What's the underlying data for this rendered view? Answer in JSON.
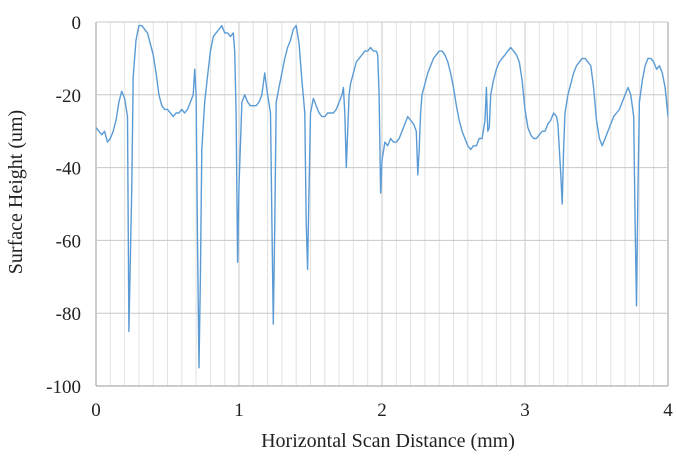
{
  "chart_data": {
    "type": "line",
    "xlabel": "Horizontal Scan Distance (mm)",
    "ylabel": "Surface Height (um)",
    "xlim": [
      0,
      4
    ],
    "ylim": [
      -100,
      0
    ],
    "x_ticks": [
      0,
      1,
      2,
      3,
      4
    ],
    "y_ticks": [
      0,
      -20,
      -40,
      -60,
      -80,
      -100
    ],
    "x_tick_labels": [
      "0",
      "1",
      "2",
      "3",
      "4"
    ],
    "y_tick_labels": [
      "0",
      "-20",
      "-40",
      "-60",
      "-80",
      "-100"
    ],
    "x_minor_step": 0.1,
    "grid": true,
    "legend": "none",
    "series_color": "#5b9bd5",
    "series": [
      {
        "values": [
          [
            0.0,
            -29
          ],
          [
            0.02,
            -30
          ],
          [
            0.04,
            -31
          ],
          [
            0.06,
            -30
          ],
          [
            0.08,
            -33
          ],
          [
            0.1,
            -32
          ],
          [
            0.12,
            -30
          ],
          [
            0.14,
            -27
          ],
          [
            0.16,
            -22
          ],
          [
            0.18,
            -19
          ],
          [
            0.2,
            -21
          ],
          [
            0.22,
            -26
          ],
          [
            0.23,
            -85
          ],
          [
            0.25,
            -45
          ],
          [
            0.26,
            -15
          ],
          [
            0.28,
            -5
          ],
          [
            0.3,
            -1
          ],
          [
            0.32,
            -1
          ],
          [
            0.34,
            -2
          ],
          [
            0.36,
            -3
          ],
          [
            0.38,
            -6
          ],
          [
            0.4,
            -9
          ],
          [
            0.42,
            -14
          ],
          [
            0.44,
            -20
          ],
          [
            0.46,
            -23
          ],
          [
            0.48,
            -24
          ],
          [
            0.5,
            -24
          ],
          [
            0.52,
            -25
          ],
          [
            0.54,
            -26
          ],
          [
            0.56,
            -25
          ],
          [
            0.58,
            -25
          ],
          [
            0.6,
            -24
          ],
          [
            0.62,
            -25
          ],
          [
            0.64,
            -24
          ],
          [
            0.66,
            -22
          ],
          [
            0.68,
            -20
          ],
          [
            0.69,
            -13
          ],
          [
            0.7,
            -20
          ],
          [
            0.71,
            -60
          ],
          [
            0.72,
            -95
          ],
          [
            0.73,
            -70
          ],
          [
            0.74,
            -35
          ],
          [
            0.76,
            -22
          ],
          [
            0.78,
            -15
          ],
          [
            0.8,
            -8
          ],
          [
            0.82,
            -4
          ],
          [
            0.84,
            -3
          ],
          [
            0.86,
            -2
          ],
          [
            0.88,
            -1
          ],
          [
            0.9,
            -3
          ],
          [
            0.92,
            -3
          ],
          [
            0.94,
            -4
          ],
          [
            0.96,
            -3
          ],
          [
            0.97,
            -8
          ],
          [
            0.98,
            -25
          ],
          [
            0.99,
            -66
          ],
          [
            1.0,
            -45
          ],
          [
            1.02,
            -22
          ],
          [
            1.04,
            -20
          ],
          [
            1.06,
            -22
          ],
          [
            1.08,
            -23
          ],
          [
            1.1,
            -23
          ],
          [
            1.12,
            -23
          ],
          [
            1.14,
            -22
          ],
          [
            1.16,
            -20
          ],
          [
            1.18,
            -14
          ],
          [
            1.2,
            -20
          ],
          [
            1.22,
            -25
          ],
          [
            1.23,
            -55
          ],
          [
            1.24,
            -83
          ],
          [
            1.25,
            -55
          ],
          [
            1.26,
            -22
          ],
          [
            1.28,
            -18
          ],
          [
            1.3,
            -14
          ],
          [
            1.32,
            -10
          ],
          [
            1.34,
            -7
          ],
          [
            1.36,
            -5
          ],
          [
            1.38,
            -2
          ],
          [
            1.4,
            -1
          ],
          [
            1.42,
            -6
          ],
          [
            1.44,
            -16
          ],
          [
            1.46,
            -25
          ],
          [
            1.47,
            -55
          ],
          [
            1.48,
            -68
          ],
          [
            1.49,
            -45
          ],
          [
            1.5,
            -25
          ],
          [
            1.52,
            -21
          ],
          [
            1.54,
            -23
          ],
          [
            1.56,
            -25
          ],
          [
            1.58,
            -26
          ],
          [
            1.6,
            -26
          ],
          [
            1.62,
            -25
          ],
          [
            1.64,
            -25
          ],
          [
            1.66,
            -25
          ],
          [
            1.68,
            -24
          ],
          [
            1.7,
            -22
          ],
          [
            1.72,
            -20
          ],
          [
            1.73,
            -18
          ],
          [
            1.74,
            -25
          ],
          [
            1.75,
            -40
          ],
          [
            1.76,
            -30
          ],
          [
            1.77,
            -20
          ],
          [
            1.78,
            -17
          ],
          [
            1.8,
            -14
          ],
          [
            1.82,
            -11
          ],
          [
            1.84,
            -10
          ],
          [
            1.86,
            -9
          ],
          [
            1.88,
            -8
          ],
          [
            1.9,
            -8
          ],
          [
            1.92,
            -7
          ],
          [
            1.94,
            -8
          ],
          [
            1.96,
            -8
          ],
          [
            1.97,
            -9
          ],
          [
            1.98,
            -20
          ],
          [
            1.99,
            -47
          ],
          [
            2.0,
            -38
          ],
          [
            2.02,
            -33
          ],
          [
            2.04,
            -34
          ],
          [
            2.06,
            -32
          ],
          [
            2.08,
            -33
          ],
          [
            2.1,
            -33
          ],
          [
            2.12,
            -32
          ],
          [
            2.14,
            -30
          ],
          [
            2.16,
            -28
          ],
          [
            2.18,
            -26
          ],
          [
            2.2,
            -27
          ],
          [
            2.22,
            -28
          ],
          [
            2.24,
            -30
          ],
          [
            2.25,
            -42
          ],
          [
            2.26,
            -35
          ],
          [
            2.27,
            -25
          ],
          [
            2.28,
            -20
          ],
          [
            2.3,
            -17
          ],
          [
            2.32,
            -14
          ],
          [
            2.34,
            -12
          ],
          [
            2.36,
            -10
          ],
          [
            2.38,
            -9
          ],
          [
            2.4,
            -8
          ],
          [
            2.42,
            -8
          ],
          [
            2.44,
            -9
          ],
          [
            2.46,
            -11
          ],
          [
            2.48,
            -14
          ],
          [
            2.5,
            -18
          ],
          [
            2.52,
            -23
          ],
          [
            2.54,
            -27
          ],
          [
            2.56,
            -30
          ],
          [
            2.58,
            -32
          ],
          [
            2.6,
            -34
          ],
          [
            2.62,
            -35
          ],
          [
            2.64,
            -34
          ],
          [
            2.66,
            -34
          ],
          [
            2.68,
            -32
          ],
          [
            2.7,
            -32
          ],
          [
            2.72,
            -27
          ],
          [
            2.73,
            -18
          ],
          [
            2.74,
            -30
          ],
          [
            2.75,
            -29
          ],
          [
            2.76,
            -20
          ],
          [
            2.78,
            -16
          ],
          [
            2.8,
            -13
          ],
          [
            2.82,
            -11
          ],
          [
            2.84,
            -10
          ],
          [
            2.86,
            -9
          ],
          [
            2.88,
            -8
          ],
          [
            2.9,
            -7
          ],
          [
            2.92,
            -8
          ],
          [
            2.94,
            -9
          ],
          [
            2.96,
            -11
          ],
          [
            2.98,
            -16
          ],
          [
            3.0,
            -24
          ],
          [
            3.02,
            -29
          ],
          [
            3.04,
            -31
          ],
          [
            3.06,
            -32
          ],
          [
            3.08,
            -32
          ],
          [
            3.1,
            -31
          ],
          [
            3.12,
            -30
          ],
          [
            3.14,
            -30
          ],
          [
            3.16,
            -28
          ],
          [
            3.18,
            -27
          ],
          [
            3.2,
            -25
          ],
          [
            3.22,
            -26
          ],
          [
            3.23,
            -28
          ],
          [
            3.25,
            -42
          ],
          [
            3.26,
            -50
          ],
          [
            3.27,
            -35
          ],
          [
            3.28,
            -25
          ],
          [
            3.3,
            -20
          ],
          [
            3.32,
            -17
          ],
          [
            3.34,
            -14
          ],
          [
            3.36,
            -12
          ],
          [
            3.38,
            -11
          ],
          [
            3.4,
            -10
          ],
          [
            3.42,
            -10
          ],
          [
            3.44,
            -11
          ],
          [
            3.46,
            -12
          ],
          [
            3.48,
            -18
          ],
          [
            3.5,
            -27
          ],
          [
            3.52,
            -32
          ],
          [
            3.54,
            -34
          ],
          [
            3.56,
            -32
          ],
          [
            3.58,
            -30
          ],
          [
            3.6,
            -28
          ],
          [
            3.62,
            -26
          ],
          [
            3.64,
            -25
          ],
          [
            3.66,
            -24
          ],
          [
            3.68,
            -22
          ],
          [
            3.7,
            -20
          ],
          [
            3.72,
            -18
          ],
          [
            3.74,
            -20
          ],
          [
            3.76,
            -26
          ],
          [
            3.77,
            -55
          ],
          [
            3.78,
            -78
          ],
          [
            3.79,
            -45
          ],
          [
            3.8,
            -22
          ],
          [
            3.82,
            -16
          ],
          [
            3.84,
            -12
          ],
          [
            3.86,
            -10
          ],
          [
            3.88,
            -10
          ],
          [
            3.9,
            -11
          ],
          [
            3.92,
            -13
          ],
          [
            3.94,
            -12
          ],
          [
            3.96,
            -14
          ],
          [
            3.98,
            -18
          ],
          [
            4.0,
            -26
          ]
        ]
      }
    ]
  }
}
